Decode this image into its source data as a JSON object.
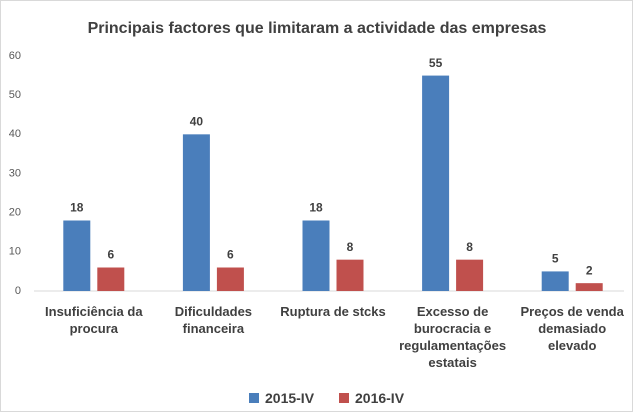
{
  "chart_data": {
    "type": "bar",
    "title": "Principais factores que limitaram a actividade das empresas",
    "categories": [
      "Insuficiência da procura",
      "Dificuldades financeira",
      "Ruptura de stcks",
      "Excesso de burocracia e regulamentações estatais",
      "Preços de venda demasiado elevado"
    ],
    "series": [
      {
        "name": "2015-IV",
        "color": "#4a7ebb",
        "values": [
          18,
          40,
          18,
          55,
          5
        ]
      },
      {
        "name": "2016-IV",
        "color": "#c0504d",
        "values": [
          6,
          6,
          8,
          8,
          2
        ]
      }
    ],
    "ylim": [
      0,
      60
    ],
    "yticks": [
      0,
      10,
      20,
      30,
      40,
      50,
      60
    ],
    "grid": false,
    "legend": "bottom"
  }
}
